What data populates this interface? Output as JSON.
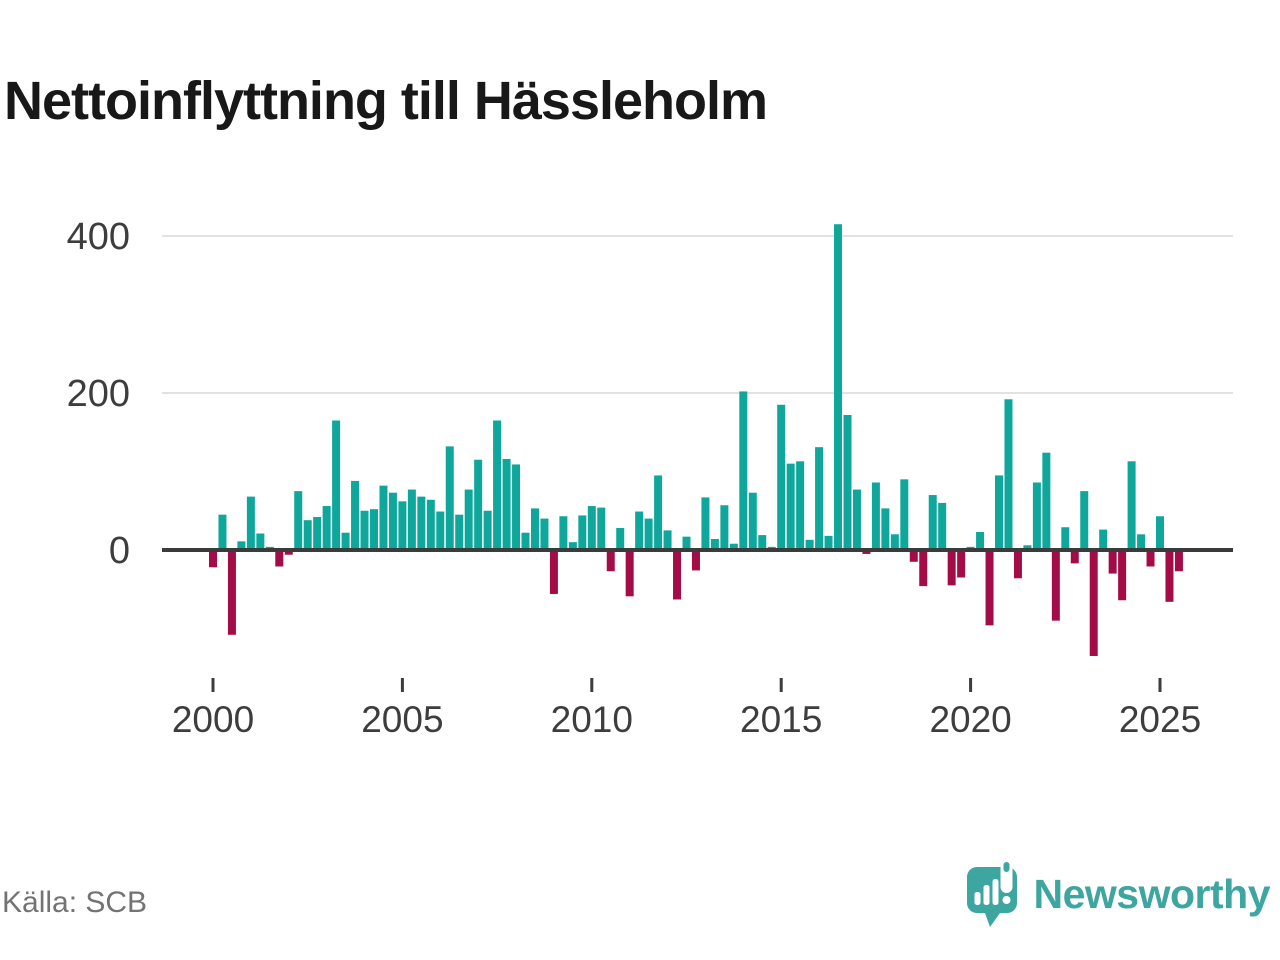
{
  "title": "Nettoinflyttning till Hässleholm",
  "source_label": "Källa: SCB",
  "brand": {
    "name": "Newsworthy",
    "logo_icon": "newsworthy-speech-bubble-bar-chart-icon"
  },
  "colors": {
    "positive_bar": "#0fa79b",
    "negative_bar": "#a40c48",
    "grid_line": "#e2e2e2",
    "zero_line": "#3b3b3b",
    "axis_text": "#3d3d3d",
    "title_text": "#181818",
    "source_text": "#737373",
    "brand_teal": "#3da6a1"
  },
  "chart_data": {
    "type": "bar",
    "title": "Nettoinflyttning till Hässleholm",
    "xlabel": "",
    "ylabel": "",
    "unit": "persons (net migration per quarter)",
    "start_period": "2000-Q1",
    "end_period": "2025-Q3",
    "frequency": "quarterly",
    "ylim": [
      -170,
      440
    ],
    "grid": "horizontal",
    "y_ticks": [
      {
        "value": 0,
        "label": "0"
      },
      {
        "value": 200,
        "label": "200"
      },
      {
        "value": 400,
        "label": "400"
      }
    ],
    "x_ticks": [
      {
        "index": 0,
        "label": "2000"
      },
      {
        "index": 20,
        "label": "2005"
      },
      {
        "index": 40,
        "label": "2010"
      },
      {
        "index": 60,
        "label": "2015"
      },
      {
        "index": 80,
        "label": "2020"
      },
      {
        "index": 100,
        "label": "2025"
      }
    ],
    "values": [
      -22,
      45,
      -108,
      11,
      68,
      21,
      4,
      -21,
      -6,
      75,
      38,
      42,
      56,
      165,
      22,
      88,
      50,
      52,
      82,
      73,
      62,
      77,
      68,
      64,
      49,
      132,
      45,
      77,
      115,
      50,
      165,
      116,
      109,
      22,
      53,
      40,
      -56,
      43,
      10,
      44,
      56,
      54,
      -27,
      28,
      -59,
      49,
      40,
      95,
      25,
      -63,
      17,
      -26,
      67,
      14,
      57,
      8,
      202,
      73,
      19,
      4,
      185,
      110,
      113,
      13,
      131,
      18,
      415,
      172,
      77,
      -5,
      86,
      53,
      20,
      90,
      -15,
      -46,
      70,
      60,
      -45,
      -35,
      4,
      23,
      -96,
      95,
      192,
      -36,
      6,
      86,
      124,
      -90,
      29,
      -17,
      75,
      -135,
      26,
      -30,
      -64,
      113,
      20,
      -21,
      43,
      -66,
      -27
    ]
  }
}
